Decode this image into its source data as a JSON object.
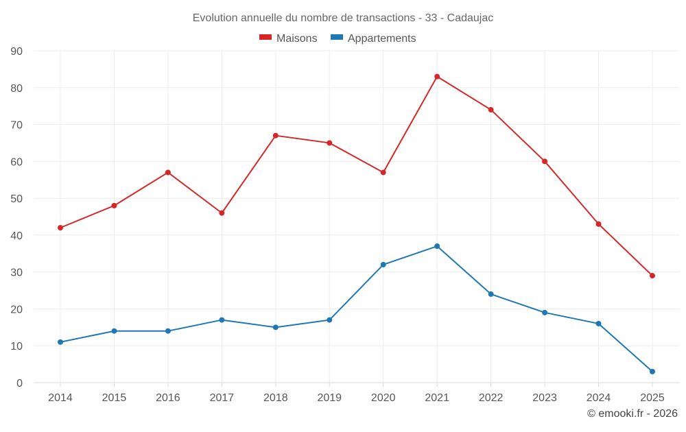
{
  "chart_data": {
    "type": "line",
    "title": "Evolution annuelle du nombre de transactions - 33 - Cadaujac",
    "categories": [
      "2014",
      "2015",
      "2016",
      "2017",
      "2018",
      "2019",
      "2020",
      "2021",
      "2022",
      "2023",
      "2024",
      "2025"
    ],
    "series": [
      {
        "name": "Maisons",
        "color": "#d62728",
        "values": [
          42,
          48,
          57,
          46,
          67,
          65,
          57,
          83,
          74,
          60,
          43,
          29
        ]
      },
      {
        "name": "Appartements",
        "color": "#1f77b4",
        "values": [
          11,
          14,
          14,
          17,
          15,
          17,
          32,
          37,
          24,
          19,
          16,
          3
        ]
      }
    ],
    "ylim": [
      0,
      90
    ],
    "yticks": [
      0,
      10,
      20,
      30,
      40,
      50,
      60,
      70,
      80,
      90
    ],
    "xlabel": "",
    "ylabel": "",
    "grid": true,
    "legend_position": "top-center",
    "credit": "© emooki.fr - 2026"
  }
}
